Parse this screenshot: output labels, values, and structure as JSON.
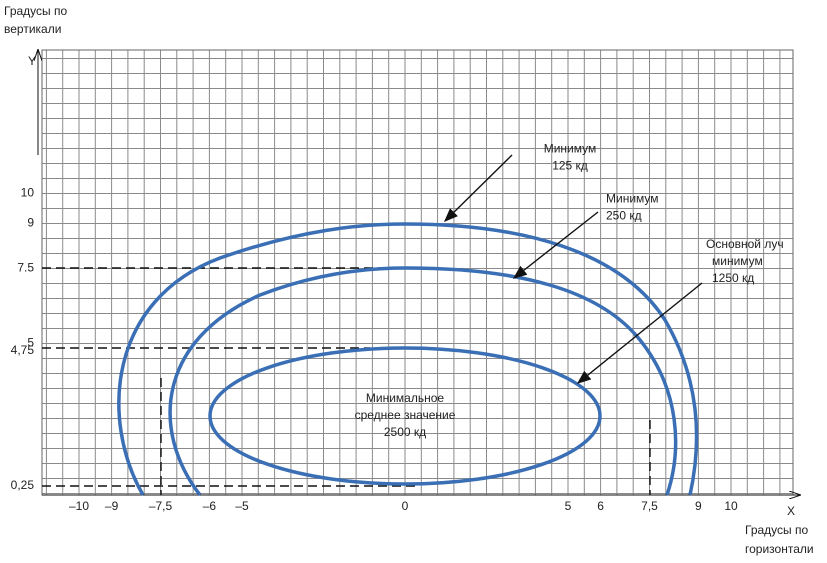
{
  "axes": {
    "y_label": [
      "Градусы по",
      "вертикали"
    ],
    "x_label": [
      "Градусы по",
      "горизонтали"
    ],
    "y_symbol": "Y",
    "x_symbol": "X",
    "x_ticks": [
      "–10",
      "–9",
      "–7,5",
      "–6",
      "–5",
      "0",
      "5",
      "6",
      "7,5",
      "9",
      "10"
    ],
    "y_ticks": [
      "10",
      "9",
      "7.5",
      "5",
      "4,75",
      "0,25"
    ]
  },
  "annotations": [
    {
      "lines": [
        "Минимум",
        "125 кд"
      ]
    },
    {
      "lines": [
        "Минимум",
        "250 кд"
      ]
    },
    {
      "lines": [
        "Основной луч",
        "минимум",
        "1250 кд"
      ]
    },
    {
      "lines": [
        "Минимальное",
        "среднее значение",
        "2500 кд"
      ]
    }
  ]
}
